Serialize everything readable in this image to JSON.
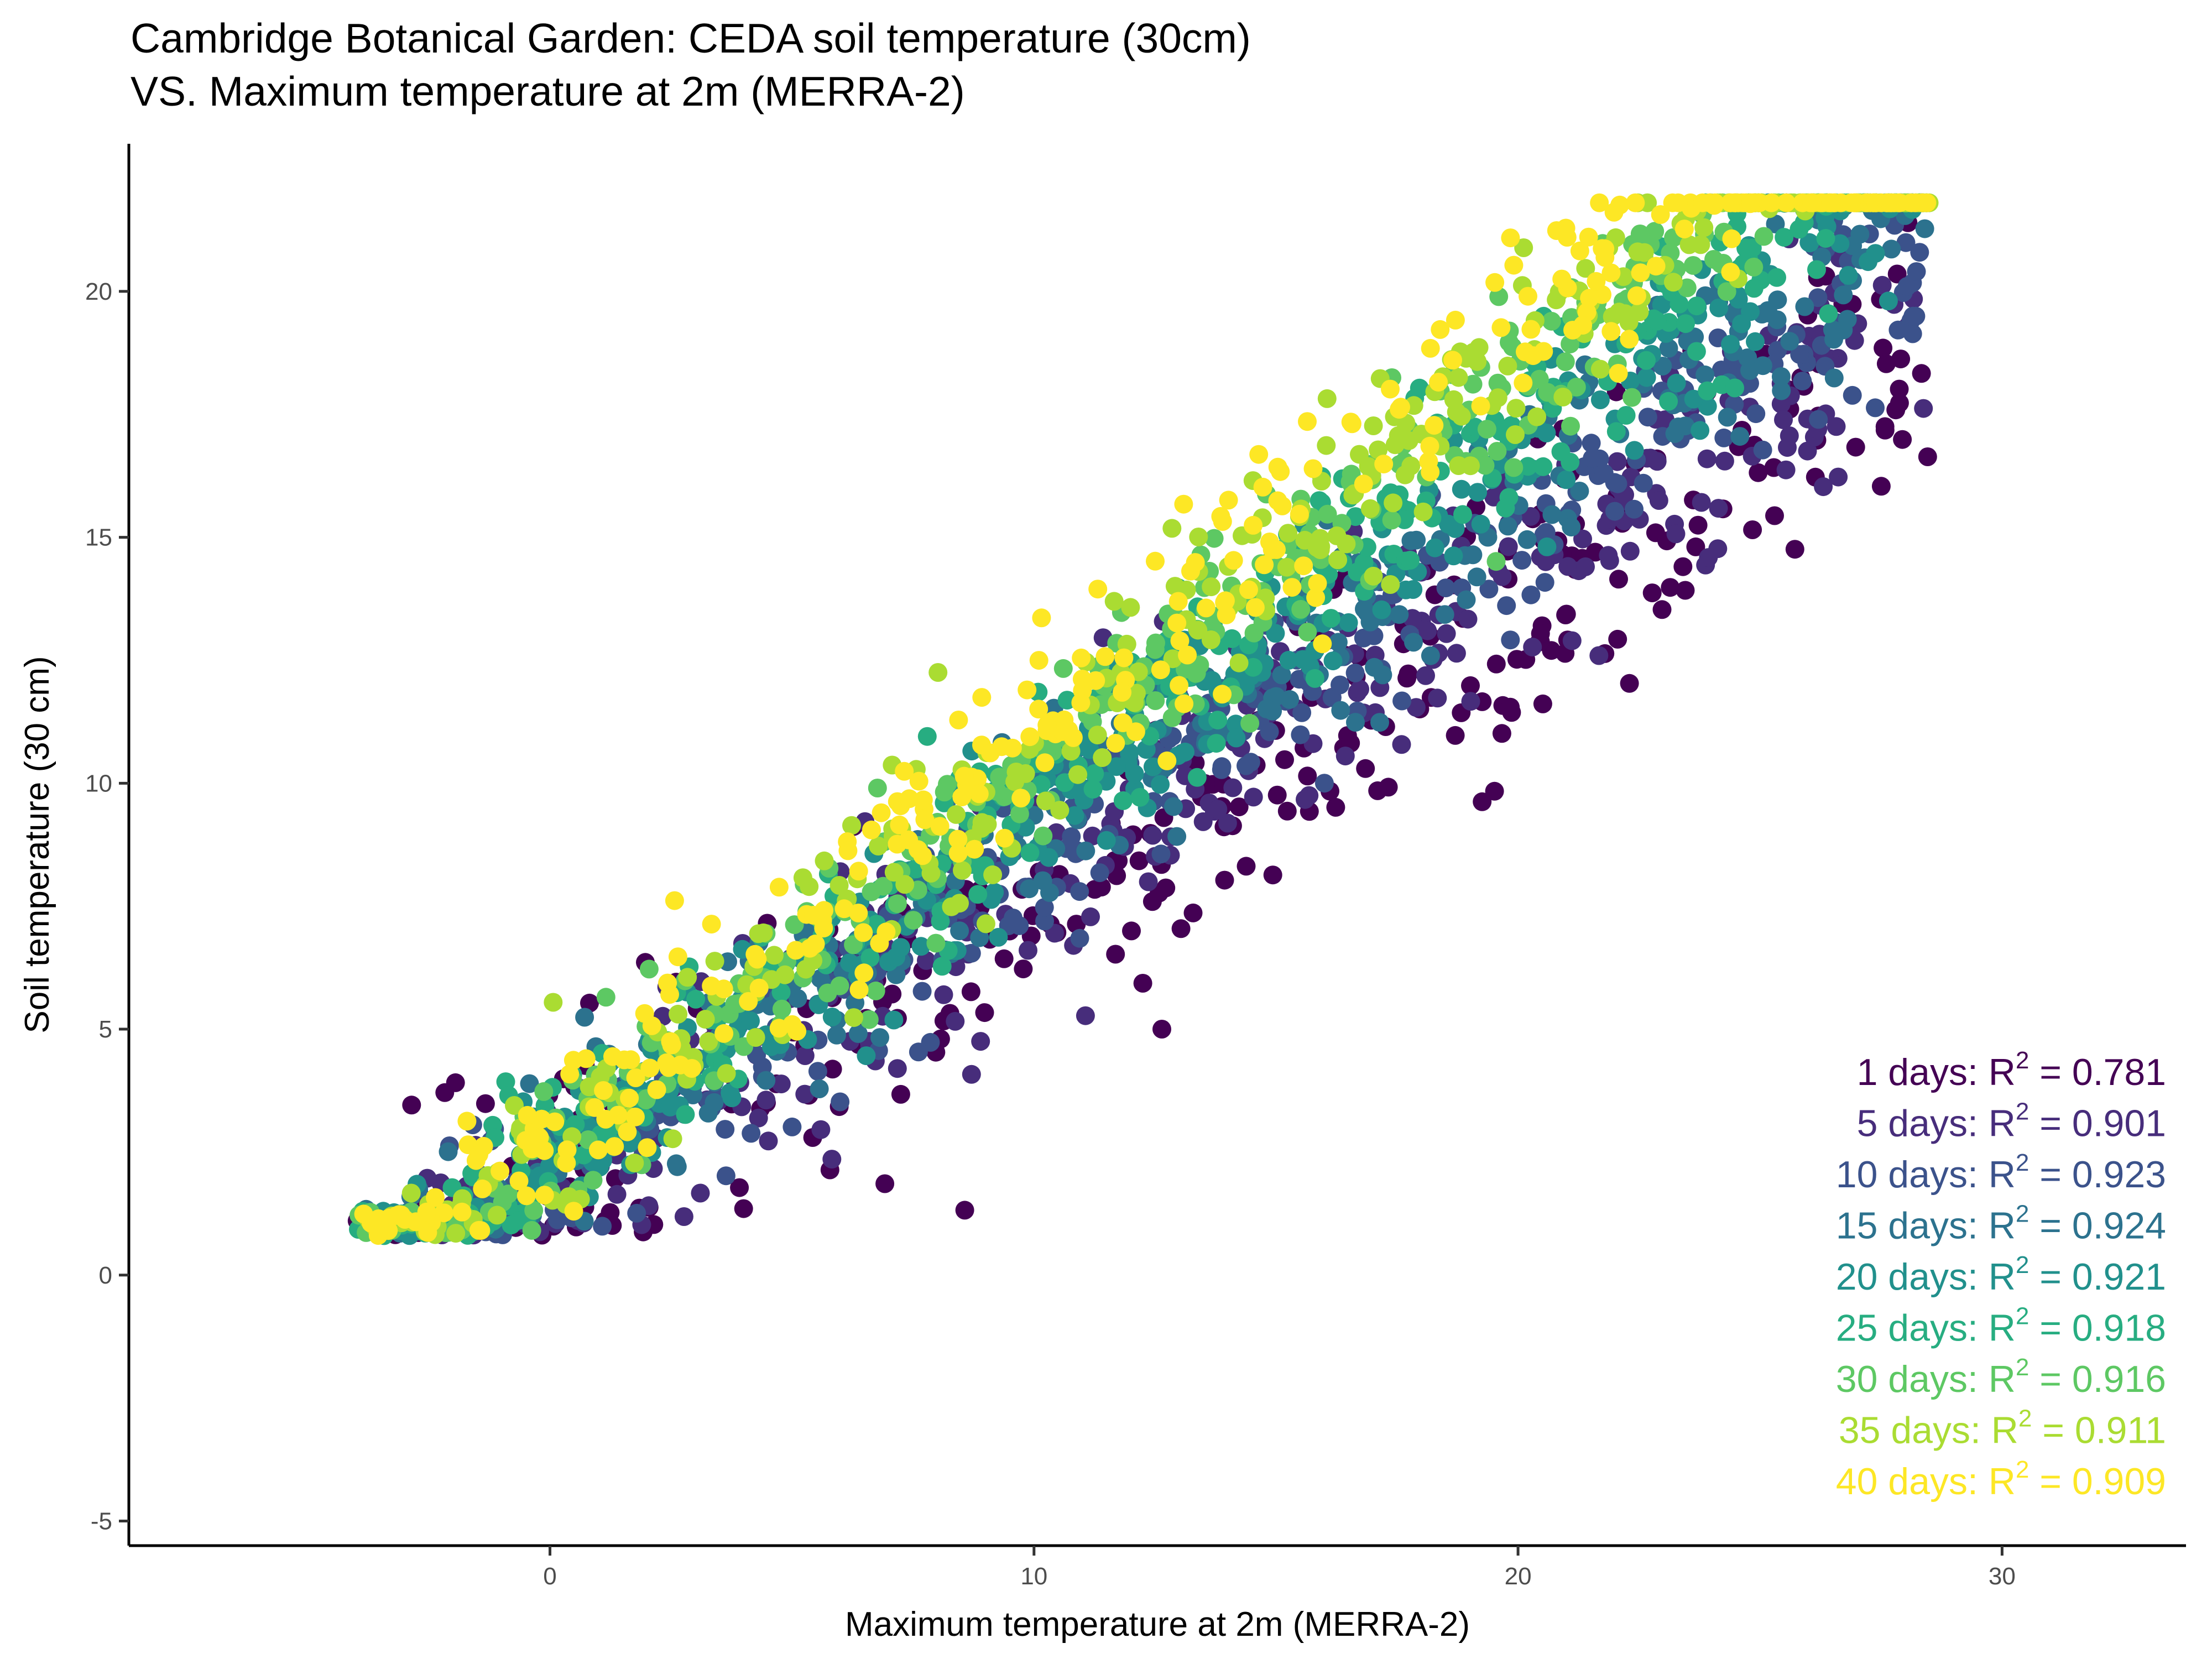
{
  "chart_data": {
    "type": "scatter",
    "title": "Cambridge Botanical Garden: CEDA soil temperature (30cm)",
    "subtitle": "VS. Maximum temperature at 2m (MERRA-2)",
    "xlabel": "Maximum temperature at 2m (MERRA-2)",
    "ylabel": "Soil temperature (30 cm)",
    "xlim": [
      -8.7,
      33.8
    ],
    "ylim": [
      -5.5,
      23.0
    ],
    "x_ticks": [
      0,
      10,
      20,
      30
    ],
    "y_ticks": [
      -5,
      0,
      5,
      10,
      15,
      20
    ],
    "x_tick_labels": [
      "0",
      "10",
      "20",
      "30"
    ],
    "y_tick_labels": [
      "-5",
      "0",
      "5",
      "10",
      "15",
      "20"
    ],
    "grid": false,
    "series": [
      {
        "name": "1 days",
        "color": "#440154",
        "r2": "0.781",
        "slope": 0.6,
        "intercept": 1.6,
        "spread": 1.55
      },
      {
        "name": "5 days",
        "color": "#472D7B",
        "r2": "0.901",
        "slope": 0.63,
        "intercept": 1.8,
        "spread": 1.25
      },
      {
        "name": "10 days",
        "color": "#3B528B",
        "r2": "0.923",
        "slope": 0.66,
        "intercept": 2.0,
        "spread": 1.05
      },
      {
        "name": "15 days",
        "color": "#2C728E",
        "r2": "0.924",
        "slope": 0.69,
        "intercept": 2.1,
        "spread": 0.95
      },
      {
        "name": "20 days",
        "color": "#21908C",
        "r2": "0.921",
        "slope": 0.72,
        "intercept": 2.3,
        "spread": 0.9
      },
      {
        "name": "25 days",
        "color": "#27AD81",
        "r2": "0.918",
        "slope": 0.75,
        "intercept": 2.4,
        "spread": 0.9
      },
      {
        "name": "30 days",
        "color": "#5DC863",
        "r2": "0.916",
        "slope": 0.78,
        "intercept": 2.5,
        "spread": 0.9
      },
      {
        "name": "35 days",
        "color": "#AADC32",
        "r2": "0.911",
        "slope": 0.8,
        "intercept": 2.6,
        "spread": 0.9
      },
      {
        "name": "40 days",
        "color": "#FDE725",
        "r2": "0.909",
        "slope": 0.82,
        "intercept": 2.7,
        "spread": 0.95
      }
    ],
    "annotations": [
      {
        "label": "1 days:",
        "r2_prefix": "R",
        "sup": "2",
        "r2_text": " = 0.781"
      },
      {
        "label": "5 days:",
        "r2_prefix": "R",
        "sup": "2",
        "r2_text": " = 0.901"
      },
      {
        "label": "10 days:",
        "r2_prefix": "R",
        "sup": "2",
        "r2_text": " = 0.923"
      },
      {
        "label": "15 days:",
        "r2_prefix": "R",
        "sup": "2",
        "r2_text": " = 0.924"
      },
      {
        "label": "20 days:",
        "r2_prefix": "R",
        "sup": "2",
        "r2_text": " = 0.921"
      },
      {
        "label": "25 days:",
        "r2_prefix": "R",
        "sup": "2",
        "r2_text": " = 0.918"
      },
      {
        "label": "30 days:",
        "r2_prefix": "R",
        "sup": "2",
        "r2_text": " = 0.916"
      },
      {
        "label": "35 days:",
        "r2_prefix": "R",
        "sup": "2",
        "r2_text": " = 0.911"
      },
      {
        "label": "40 days:",
        "r2_prefix": "R",
        "sup": "2",
        "r2_text": " = 0.909"
      }
    ]
  }
}
